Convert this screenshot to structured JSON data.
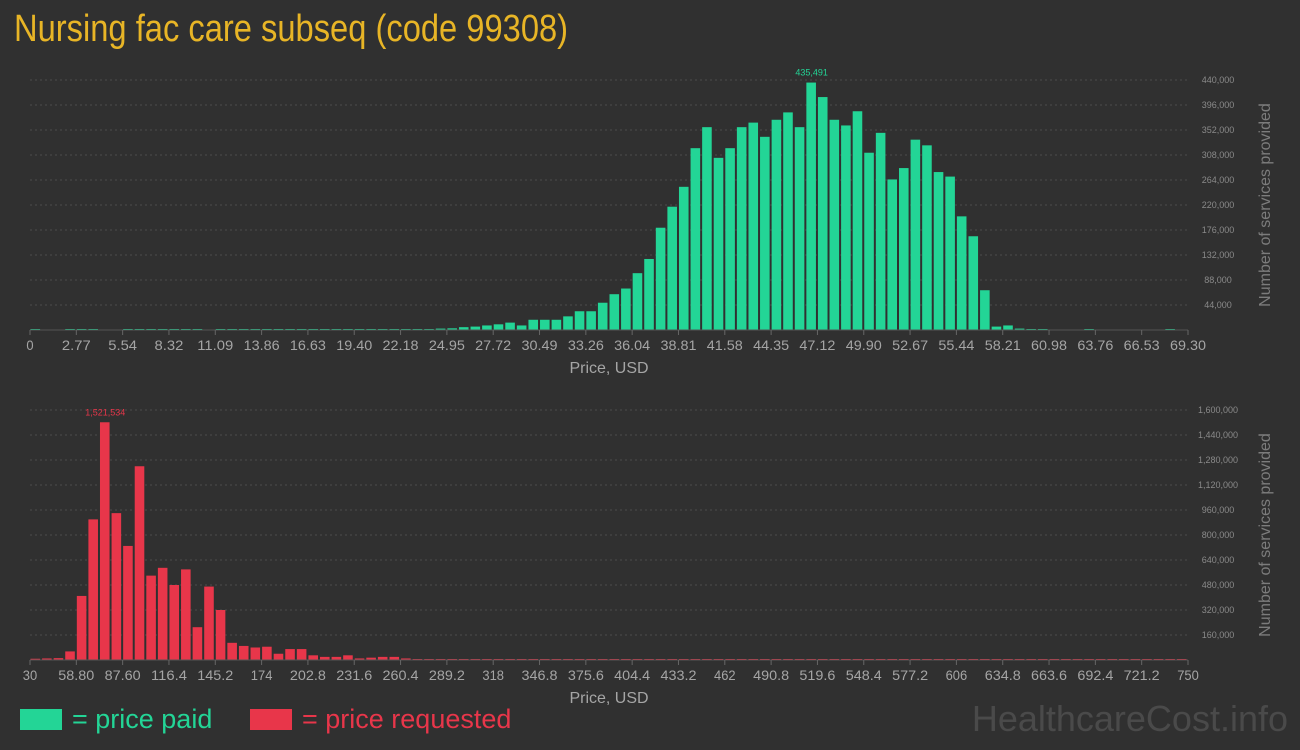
{
  "title": "Nursing fac care subseq (code 99308)",
  "legend": {
    "paid": "= price paid",
    "requested": "= price requested"
  },
  "watermark": "HealthcareCost.info",
  "colors": {
    "paid": "#23d596",
    "requested": "#e8364a",
    "title": "#e8b526"
  },
  "chart_data": [
    {
      "type": "bar",
      "name": "price-paid",
      "color": "#23d596",
      "xlabel": "Price, USD",
      "ylabel": "Number of services provided",
      "xlim": [
        0,
        69.3
      ],
      "ylim": [
        0,
        440000
      ],
      "x_ticks": [
        "0",
        "2.77",
        "5.54",
        "8.32",
        "11.09",
        "13.86",
        "16.63",
        "19.40",
        "22.18",
        "24.95",
        "27.72",
        "30.49",
        "33.26",
        "36.04",
        "38.81",
        "41.58",
        "44.35",
        "47.12",
        "49.90",
        "52.67",
        "55.44",
        "58.21",
        "60.98",
        "63.76",
        "66.53",
        "69.30"
      ],
      "y_ticks": [
        "44,000",
        "88,000",
        "132,000",
        "176,000",
        "220,000",
        "264,000",
        "308,000",
        "352,000",
        "396,000",
        "440,000"
      ],
      "peak_label": "435,491",
      "values": [
        500,
        0,
        0,
        1000,
        1000,
        1000,
        0,
        0,
        700,
        700,
        700,
        700,
        700,
        700,
        700,
        0,
        700,
        700,
        700,
        700,
        700,
        700,
        700,
        700,
        700,
        700,
        700,
        700,
        700,
        700,
        700,
        700,
        700,
        700,
        1200,
        2500,
        3000,
        5000,
        6000,
        8000,
        10000,
        13000,
        8000,
        18000,
        18000,
        18000,
        24000,
        33000,
        33000,
        48000,
        63000,
        73000,
        100000,
        125000,
        180000,
        217000,
        252000,
        320000,
        357000,
        303000,
        320000,
        357000,
        365000,
        340000,
        370000,
        383000,
        357000,
        435491,
        410000,
        370000,
        360000,
        385000,
        312000,
        347000,
        265000,
        285000,
        335000,
        325000,
        278000,
        270000,
        200000,
        165000,
        70000,
        6000,
        8000,
        2500,
        800,
        700,
        0,
        0,
        0,
        700,
        0,
        0,
        0,
        0,
        0,
        0,
        700,
        0
      ]
    },
    {
      "type": "bar",
      "name": "price-requested",
      "color": "#e8364a",
      "xlabel": "Price, USD",
      "ylabel": "Number of services provided",
      "xlim": [
        30,
        750
      ],
      "ylim": [
        0,
        1600000
      ],
      "x_ticks": [
        "30",
        "58.80",
        "87.60",
        "116.4",
        "145.2",
        "174",
        "202.8",
        "231.6",
        "260.4",
        "289.2",
        "318",
        "346.8",
        "375.6",
        "404.4",
        "433.2",
        "462",
        "490.8",
        "519.6",
        "548.4",
        "577.2",
        "606",
        "634.8",
        "663.6",
        "692.4",
        "721.2",
        "750"
      ],
      "y_ticks": [
        "160,000",
        "320,000",
        "480,000",
        "640,000",
        "800,000",
        "960,000",
        "1,120,000",
        "1,280,000",
        "1,440,000",
        "1,600,000"
      ],
      "peak_label": "1,521,534",
      "values": [
        8000,
        10000,
        12000,
        55000,
        410000,
        900000,
        1521534,
        940000,
        730000,
        1240000,
        540000,
        590000,
        480000,
        580000,
        210000,
        470000,
        320000,
        110000,
        90000,
        80000,
        85000,
        40000,
        70000,
        70000,
        30000,
        20000,
        20000,
        30000,
        10000,
        15000,
        20000,
        20000,
        10000,
        5000,
        5000,
        5000,
        5000,
        5000,
        5000,
        5000,
        5000,
        5000,
        5000,
        5000,
        5000,
        5000,
        5000,
        5000,
        5000,
        5000,
        5000,
        5000,
        5000,
        5000,
        5000,
        5000,
        5000,
        5000,
        5000,
        5000,
        5000,
        5000,
        5000,
        5000,
        5000,
        5000,
        5000,
        5000,
        5000,
        5000,
        5000,
        5000,
        5000,
        5000,
        5000,
        5000,
        5000,
        5000,
        5000,
        5000,
        5000,
        5000,
        5000,
        5000,
        5000,
        5000,
        5000,
        5000,
        5000,
        5000,
        5000,
        5000,
        5000,
        5000,
        5000,
        5000,
        5000,
        5000,
        5000,
        5000
      ]
    }
  ]
}
